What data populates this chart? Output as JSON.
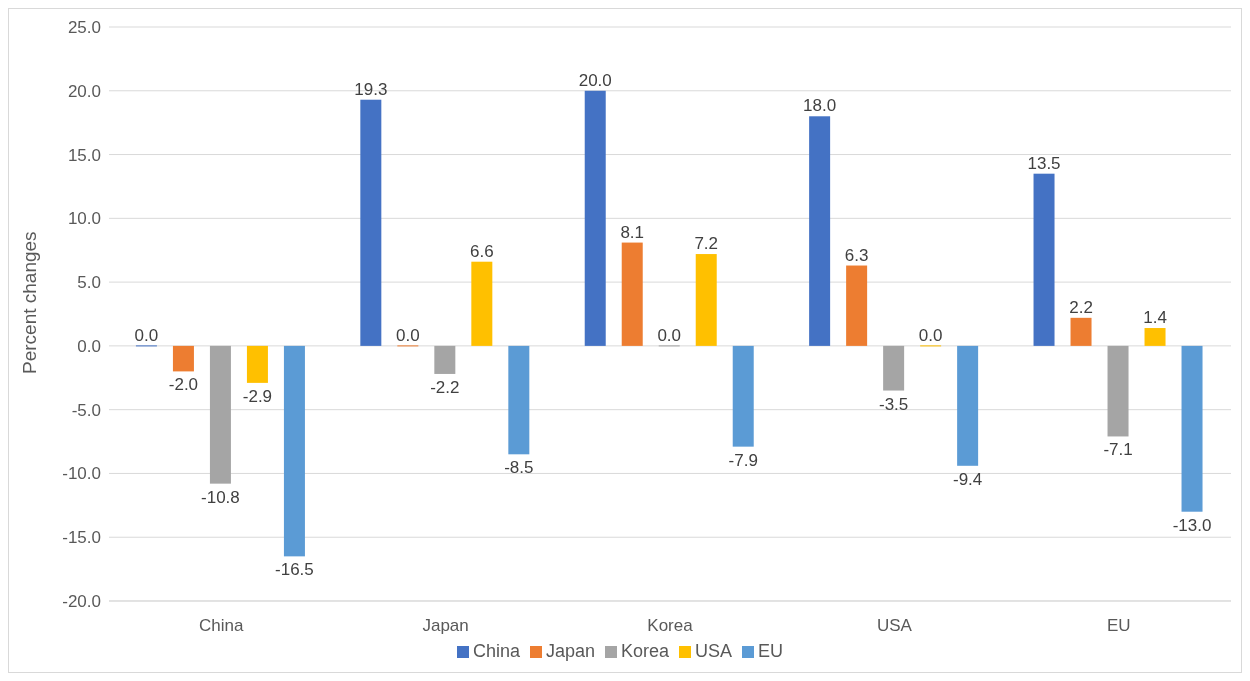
{
  "chart_data": {
    "type": "bar",
    "ylabel": "Percent changes",
    "categories": [
      "China",
      "Japan",
      "Korea",
      "USA",
      "EU"
    ],
    "series": [
      {
        "name": "China",
        "color": "#4472c4",
        "values": [
          0.0,
          19.3,
          20.0,
          18.0,
          13.5
        ],
        "value_labels": [
          "0.0",
          "19.3",
          "20.0",
          "18.0",
          "13.5"
        ]
      },
      {
        "name": "Japan",
        "color": "#ed7d31",
        "values": [
          -2.0,
          0.0,
          8.1,
          6.3,
          2.2
        ],
        "value_labels": [
          "-2.0",
          "0.0",
          "8.1",
          "6.3",
          "2.2"
        ]
      },
      {
        "name": "Korea",
        "color": "#a5a5a5",
        "values": [
          -10.8,
          -2.2,
          0.0,
          -3.5,
          -7.1
        ],
        "value_labels": [
          "-10.8",
          "-2.2",
          "0.0",
          "-3.5",
          "-7.1"
        ]
      },
      {
        "name": "USA",
        "color": "#ffc000",
        "values": [
          -2.9,
          6.6,
          7.2,
          0.0,
          1.4
        ],
        "value_labels": [
          "-2.9",
          "6.6",
          "7.2",
          "0.0",
          "1.4"
        ]
      },
      {
        "name": "EU",
        "color": "#5b9bd5",
        "values": [
          -16.5,
          -8.5,
          -7.9,
          -9.4,
          -13.0
        ],
        "value_labels": [
          "-16.5",
          "-8.5",
          "-7.9",
          "-9.4",
          "-13.0"
        ]
      }
    ],
    "ylim": [
      -20,
      25
    ],
    "yticks": [
      {
        "value": -20,
        "label": "-20.0"
      },
      {
        "value": -15,
        "label": "-15.0"
      },
      {
        "value": -10,
        "label": "-10.0"
      },
      {
        "value": -5,
        "label": "-5.0"
      },
      {
        "value": 0,
        "label": "0.0"
      },
      {
        "value": 5,
        "label": "5.0"
      },
      {
        "value": 10,
        "label": "10.0"
      },
      {
        "value": 15,
        "label": "15.0"
      },
      {
        "value": 20,
        "label": "20.0"
      },
      {
        "value": 25,
        "label": "25.0"
      }
    ],
    "grid": "y",
    "legend": "bottom"
  }
}
